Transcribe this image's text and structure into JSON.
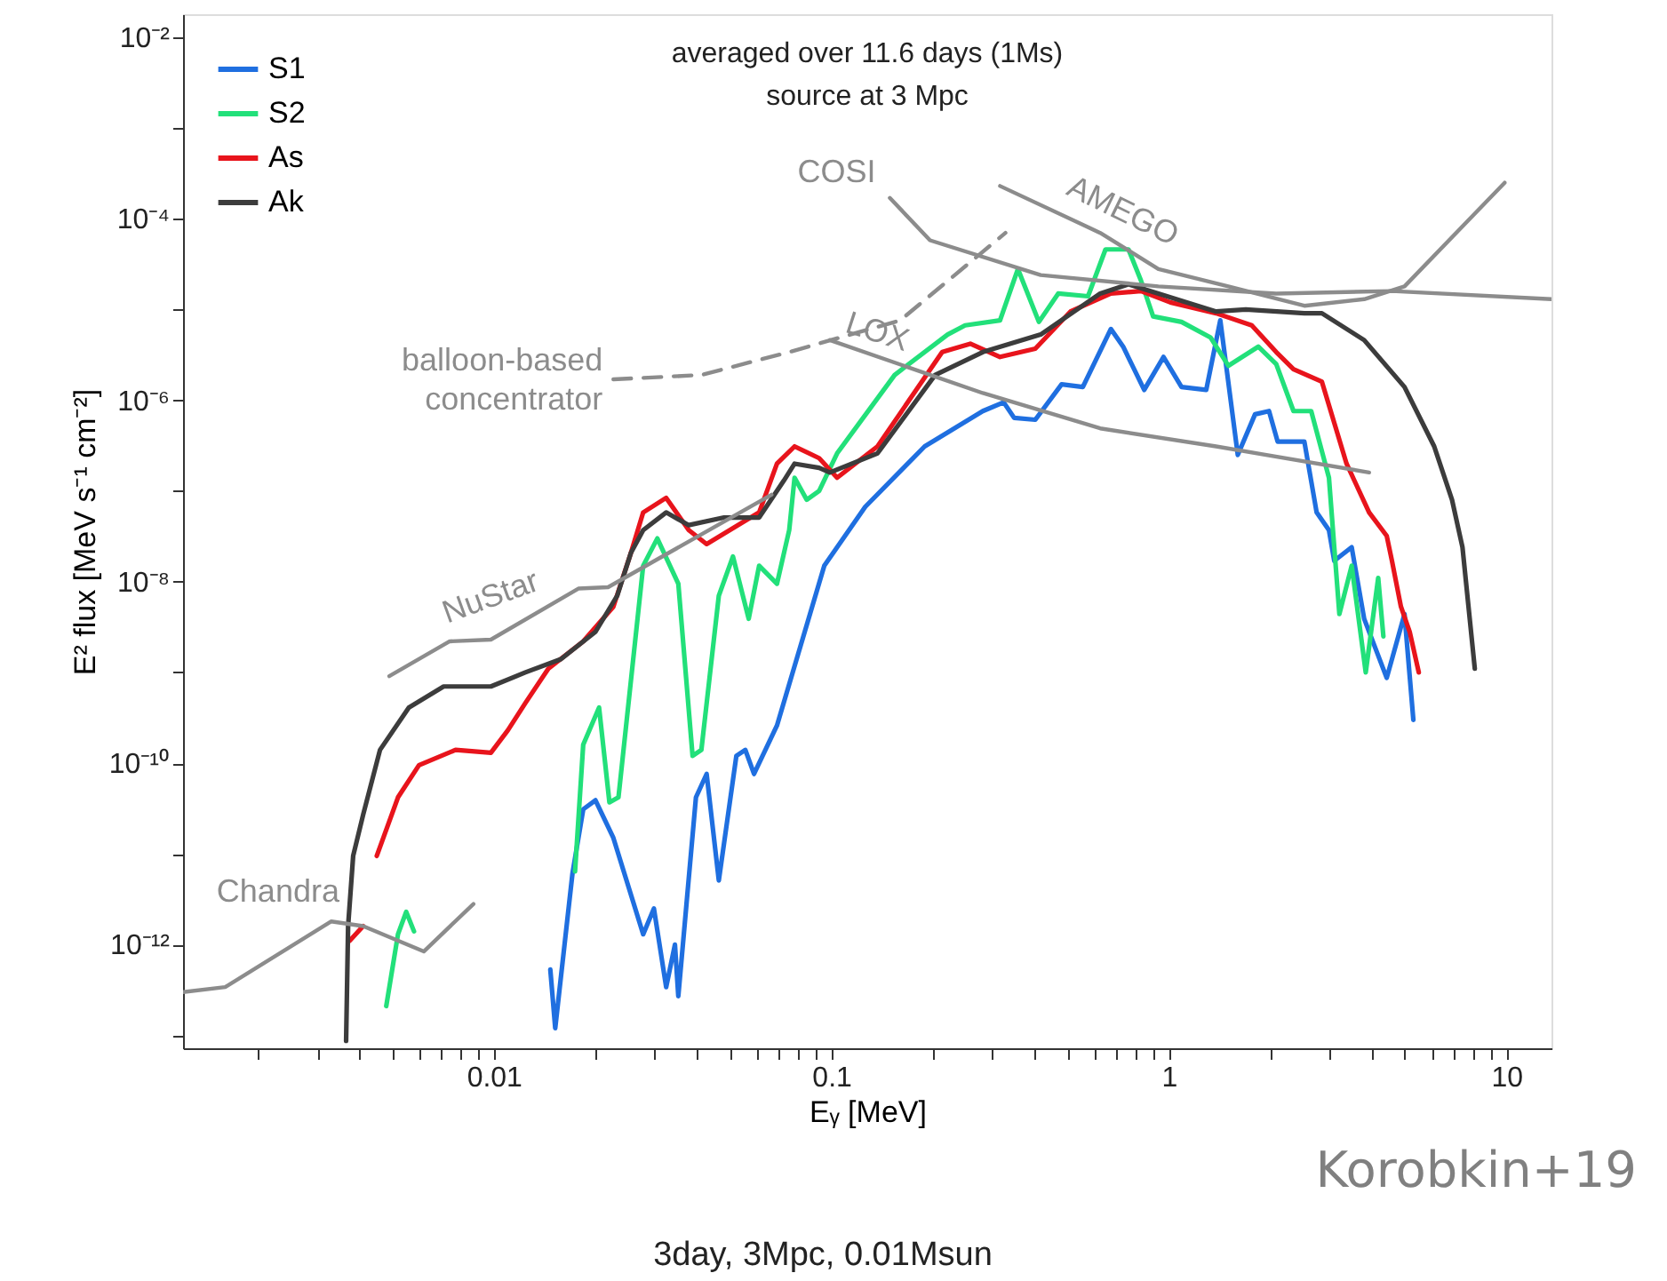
{
  "chart_data": {
    "type": "line",
    "xlabel": "Eᵧ [MeV]",
    "ylabel": "E² flux [MeV s⁻¹ cm⁻²]",
    "annotations": [
      "averaged over 11.6 days (1Ms)",
      "source at 3 Mpc",
      "3day, 3Mpc, 0.01Msun",
      "Korobkin+19"
    ],
    "log": "xy",
    "grid": false,
    "legend": "top left",
    "marker": "none",
    "xlim": [
      0.0012,
      13.6
    ],
    "ylim": [
      7.2e-14,
      0.018
    ],
    "xticks": [
      {
        "value": 0.002,
        "label": null
      },
      {
        "value": 0.003,
        "label": null
      },
      {
        "value": 0.004,
        "label": null
      },
      {
        "value": 0.005,
        "label": null
      },
      {
        "value": 0.006,
        "label": null
      },
      {
        "value": 0.007,
        "label": null
      },
      {
        "value": 0.008,
        "label": null
      },
      {
        "value": 0.009,
        "label": null
      },
      0.01,
      {
        "value": 0.02,
        "label": null
      },
      {
        "value": 0.03,
        "label": null
      },
      {
        "value": 0.04,
        "label": null
      },
      {
        "value": 0.05,
        "label": null
      },
      {
        "value": 0.06,
        "label": null
      },
      {
        "value": 0.07,
        "label": null
      },
      {
        "value": 0.08,
        "label": null
      },
      {
        "value": 0.09,
        "label": null
      },
      0.1,
      {
        "value": 0.2,
        "label": null
      },
      {
        "value": 0.3,
        "label": null
      },
      {
        "value": 0.4,
        "label": null
      },
      {
        "value": 0.5,
        "label": null
      },
      {
        "value": 0.6,
        "label": null
      },
      {
        "value": 0.7,
        "label": null
      },
      {
        "value": 0.8,
        "label": null
      },
      {
        "value": 0.9,
        "label": null
      },
      1,
      {
        "value": 2,
        "label": null
      },
      {
        "value": 3,
        "label": null
      },
      {
        "value": 4,
        "label": null
      },
      {
        "value": 5,
        "label": null
      },
      {
        "value": 6,
        "label": null
      },
      {
        "value": 7,
        "label": null
      },
      {
        "value": 8,
        "label": null
      },
      {
        "value": 9,
        "label": null
      },
      10
    ],
    "yticks": [
      {
        "value": 1e-13,
        "label": null
      },
      {
        "value": 1e-12,
        "label": "10⁻¹²"
      },
      {
        "value": 1e-11,
        "label": null
      },
      {
        "value": 1e-10,
        "label": "10⁻¹⁰"
      },
      {
        "value": 1e-09,
        "label": null
      },
      {
        "value": 1e-08,
        "label": "10⁻⁸"
      },
      {
        "value": 1e-07,
        "label": null
      },
      {
        "value": 1e-06,
        "label": "10⁻⁶"
      },
      {
        "value": 1e-05,
        "label": null
      },
      {
        "value": 0.0001,
        "label": "10⁻⁴"
      },
      {
        "value": 0.001,
        "label": null
      },
      {
        "value": 0.01,
        "label": "10⁻²"
      }
    ],
    "series": [
      {
        "name": "S1",
        "color": "#1f6fe0",
        "x": [
          0.0147,
          0.0152,
          0.0171,
          0.0184,
          0.02,
          0.0226,
          0.0277,
          0.0298,
          0.0324,
          0.0344,
          0.0352,
          0.0397,
          0.0427,
          0.0464,
          0.0523,
          0.0556,
          0.059,
          0.069,
          0.0953,
          0.126,
          0.189,
          0.281,
          0.324,
          0.348,
          0.402,
          0.481,
          0.556,
          0.673,
          0.732,
          0.845,
          0.964,
          1.09,
          1.29,
          1.42,
          1.6,
          1.8,
          1.98,
          2.1,
          2.52,
          2.74,
          2.98,
          3.09,
          3.48,
          3.79,
          4.42,
          4.99,
          5.3
        ],
        "values": [
          5.3e-13,
          1.2e-13,
          6.1e-12,
          3.1e-11,
          3.9e-11,
          1.5e-11,
          1.3e-12,
          2.5e-12,
          3.4e-13,
          1e-12,
          2.7e-13,
          4.2e-11,
          7.6e-11,
          5.1e-12,
          1.2e-10,
          1.4e-10,
          7.6e-11,
          2.6e-10,
          1.5e-08,
          6.7e-08,
          3.1e-07,
          7.6e-07,
          9.5e-07,
          6.4e-07,
          6.1e-07,
          1.5e-06,
          1.4e-06,
          6.1e-06,
          3.9e-06,
          1.3e-06,
          3e-06,
          1.4e-06,
          1.3e-06,
          7.6e-06,
          2.5e-07,
          7e-07,
          7.6e-07,
          3.5e-07,
          3.5e-07,
          5.8e-08,
          3.7e-08,
          1.7e-08,
          2.4e-08,
          3.9e-09,
          8.7e-10,
          4.4e-09,
          3e-10
        ]
      },
      {
        "name": "S2",
        "color": "#22e07a",
        "x": [
          0.0048,
          0.0052,
          0.0055,
          0.0058,
          0.01,
          0.0174,
          0.0184,
          0.0205,
          0.022,
          0.0234,
          0.0277,
          0.0305,
          0.0352,
          0.0388,
          0.0412,
          0.0464,
          0.0511,
          0.0569,
          0.0611,
          0.069,
          0.075,
          0.0778,
          0.0845,
          0.092,
          0.104,
          0.154,
          0.221,
          0.249,
          0.316,
          0.357,
          0.412,
          0.47,
          0.576,
          0.649,
          0.759,
          0.826,
          0.898,
          1.09,
          1.33,
          1.5,
          1.84,
          2.08,
          2.34,
          2.64,
          2.98,
          3.09,
          3.2,
          3.48,
          3.83,
          4.17,
          4.32
        ],
        "values": [
          2.1e-13,
          1.3e-12,
          2.3e-12,
          1.4e-12,
          null,
          6.4e-12,
          1.6e-10,
          4.1e-10,
          3.7e-11,
          4.2e-11,
          1.5e-08,
          3e-08,
          9.5e-09,
          1.2e-10,
          1.4e-10,
          7e-09,
          1.9e-08,
          3.9e-09,
          1.5e-08,
          9.5e-09,
          3.7e-08,
          1.4e-07,
          8e-08,
          1e-07,
          2.6e-07,
          1.9e-06,
          5.3e-06,
          6.7e-06,
          7.6e-06,
          2.8e-05,
          7.3e-06,
          1.5e-05,
          1.4e-05,
          4.6e-05,
          4.6e-05,
          2.1e-05,
          8.4e-06,
          7.3e-06,
          4.9e-06,
          2.4e-06,
          3.9e-06,
          2.5e-06,
          7.6e-07,
          7.6e-07,
          1.4e-07,
          2.4e-08,
          4.4e-09,
          1.5e-08,
          1e-09,
          1.1e-08,
          2.5e-09
        ]
      },
      {
        "name": "As",
        "color": "#e8141c",
        "x": [
          0.00374,
          0.0041,
          0.0043,
          0.0045,
          0.0052,
          0.006,
          0.0077,
          0.0098,
          0.011,
          0.0124,
          0.0145,
          0.0184,
          0.0226,
          0.0255,
          0.0277,
          0.0324,
          0.0378,
          0.0427,
          0.0523,
          0.0611,
          0.069,
          0.0778,
          0.092,
          0.104,
          0.137,
          0.213,
          0.258,
          0.316,
          0.402,
          0.511,
          0.673,
          0.826,
          1.01,
          1.38,
          1.76,
          2.08,
          2.34,
          2.84,
          3.36,
          3.92,
          4.42,
          4.58,
          4.87,
          5.17,
          5.5
        ],
        "values": [
          1.1e-12,
          1.6e-12,
          null,
          9.5e-12,
          4.2e-11,
          9.5e-11,
          1.4e-10,
          1.3e-10,
          2.3e-10,
          4.6e-10,
          1.1e-09,
          2.2e-09,
          5.3e-09,
          2.1e-08,
          5.8e-08,
          8.4e-08,
          3.7e-08,
          2.6e-08,
          4.1e-08,
          5.8e-08,
          2e-07,
          3.1e-07,
          2.3e-07,
          1.4e-07,
          3.1e-07,
          3.4e-06,
          4.2e-06,
          3e-06,
          3.7e-06,
          9.5e-06,
          1.5e-05,
          1.6e-05,
          1.2e-05,
          9.1e-06,
          6.7e-06,
          3.4e-06,
          2.2e-06,
          1.6e-06,
          2e-07,
          5.8e-08,
          3.2e-08,
          1.7e-08,
          5.3e-09,
          2.8e-09,
          1e-09
        ]
      },
      {
        "name": "Ak",
        "color": "#3c3c3c",
        "x": [
          0.00365,
          0.0037,
          0.00383,
          0.0041,
          0.0046,
          0.0056,
          0.0071,
          0.0098,
          0.0124,
          0.0158,
          0.02,
          0.0232,
          0.0255,
          0.0277,
          0.0324,
          0.0378,
          0.0481,
          0.0611,
          0.0723,
          0.0778,
          0.092,
          0.099,
          0.137,
          0.203,
          0.281,
          0.417,
          0.626,
          0.759,
          0.931,
          1.38,
          1.69,
          2.52,
          2.84,
          3.79,
          4.99,
          6.11,
          6.9,
          7.41,
          8.06
        ],
        "values": [
          8.7e-14,
          1.6e-12,
          9.5e-12,
          2.7e-11,
          1.4e-10,
          4.1e-10,
          7e-10,
          7e-10,
          1e-09,
          1.4e-09,
          2.8e-09,
          7e-09,
          2.1e-08,
          3.7e-08,
          5.8e-08,
          4.2e-08,
          5.1e-08,
          5.1e-08,
          1.3e-07,
          2e-07,
          1.8e-07,
          1.6e-07,
          2.6e-07,
          1.9e-06,
          3.4e-06,
          5.3e-06,
          1.5e-05,
          1.9e-05,
          1.5e-05,
          9.5e-06,
          1e-05,
          9.1e-06,
          9.1e-06,
          4.6e-06,
          1.4e-06,
          3.1e-07,
          8e-08,
          2.4e-08,
          1.1e-09
        ]
      },
      {
        "name": "Chandra",
        "color": "#8c8c8c",
        "x": [
          0.0012,
          0.0016,
          0.0033,
          0.0041,
          0.0062,
          0.0087
        ],
        "values": [
          3e-13,
          3.4e-13,
          1.8e-12,
          1.6e-12,
          8.4e-13,
          2.8e-12
        ]
      },
      {
        "name": "NuStar",
        "color": "#8c8c8c",
        "x": [
          0.0049,
          0.0074,
          0.0098,
          0.0178,
          0.0218,
          0.0665
        ],
        "values": [
          9.1e-10,
          2.2e-09,
          2.3e-09,
          8.4e-09,
          8.7e-09,
          9.1e-08
        ]
      },
      {
        "name": "balloon-based concentrator",
        "color": "#8c8c8c",
        "line_style": "dashed",
        "x": [
          0.0226,
          0.0412,
          0.075,
          0.16,
          0.328
        ],
        "values": [
          1.7e-06,
          1.9e-06,
          3.4e-06,
          7.6e-06,
          7e-05
        ]
      },
      {
        "name": "LOX",
        "color": "#8c8c8c",
        "x": [
          0.099,
          0.281,
          0.626,
          1.38,
          3.92
        ],
        "values": [
          4.6e-06,
          1.2e-06,
          4.9e-07,
          3.1e-07,
          1.6e-07
        ]
      },
      {
        "name": "COSI",
        "color": "#8c8c8c",
        "x": [
          0.149,
          0.196,
          0.417,
          0.931,
          2.08,
          4.58,
          13.6
        ],
        "values": [
          0.00017,
          5.8e-05,
          2.4e-05,
          1.8e-05,
          1.5e-05,
          1.6e-05,
          1.3e-05
        ]
      },
      {
        "name": "AMEGO",
        "color": "#8c8c8c",
        "x": [
          0.316,
          0.626,
          0.931,
          1.5,
          2.52,
          3.79,
          4.99,
          9.88
        ],
        "values": [
          0.00023,
          7e-05,
          2.8e-05,
          1.8e-05,
          1.1e-05,
          1.3e-05,
          1.8e-05,
          0.00025
        ]
      }
    ]
  }
}
